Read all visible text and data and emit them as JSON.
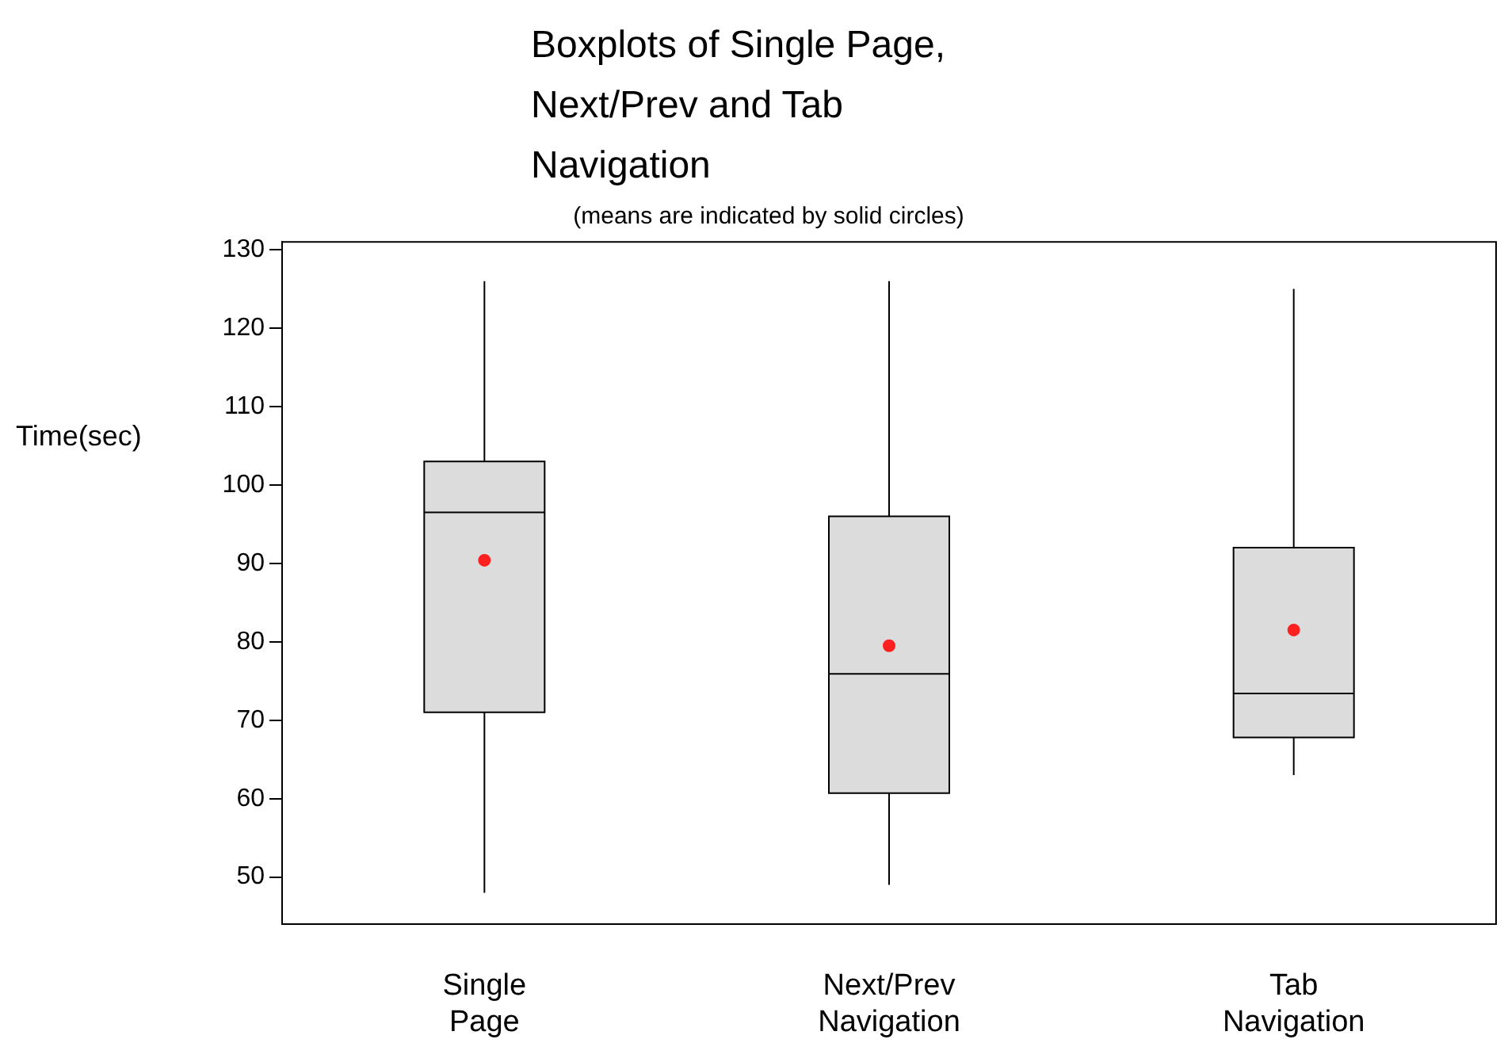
{
  "chart_data": {
    "type": "box",
    "title": "Boxplots of Single Page, Next/Prev and Tab Navigation",
    "subtitle": "(means are indicated by solid circles)",
    "ylabel": "Time(sec)",
    "categories": [
      "Single Page",
      "Next/Prev Navigation",
      "Tab Navigation"
    ],
    "color": "#dcdcdc",
    "boxes": [
      {
        "low": 48,
        "q1": 71,
        "median": 96.5,
        "q3": 103,
        "high": 126,
        "mean": 90.4
      },
      {
        "low": 49,
        "q1": 60.7,
        "median": 75.9,
        "q3": 96,
        "high": 126,
        "mean": 79.5
      },
      {
        "low": 63,
        "q1": 67.8,
        "median": 73.4,
        "q3": 92,
        "high": 125,
        "mean": 81.5
      }
    ],
    "ylim": [
      44,
      131
    ],
    "yticks": [
      50,
      60,
      70,
      80,
      90,
      100,
      110,
      120,
      130
    ],
    "grid": false,
    "legend": false
  }
}
